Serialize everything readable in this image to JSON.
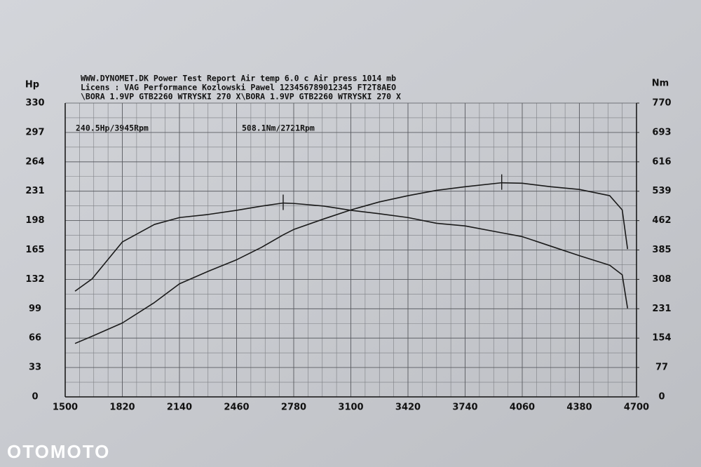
{
  "chart_data": {
    "type": "line",
    "header": [
      "WWW.DYNOMET.DK  Power Test Report   Air temp     6.0 c      Air press   1014 mb",
      "Licens :  VAG Performance Kozlowski Pawel 123456789012345 FT2T8AEO",
      "\\BORA 1.9VP GTB2260 WTRYSKI 270 X\\BORA 1.9VP GTB2260 WTRYSKI 270 X"
    ],
    "annotations": [
      "240.5Hp/3945Rpm",
      "508.1Nm/2721Rpm"
    ],
    "ylabel": "Hp",
    "y2label": "Nm",
    "watermark": "OTOMOTO",
    "x": [
      1555,
      1650,
      1820,
      2000,
      2140,
      2300,
      2460,
      2600,
      2721,
      2780,
      2950,
      3100,
      3260,
      3420,
      3580,
      3740,
      3945,
      4060,
      4220,
      4380,
      4550,
      4620,
      4650
    ],
    "series": [
      {
        "color": "#1a1a1a",
        "values": [
          60,
          68,
          83,
          106,
          127,
          141,
          154,
          168,
          182,
          188,
          200,
          210,
          219,
          226,
          232,
          236,
          240.5,
          240,
          236,
          233,
          226,
          210,
          166
        ]
      },
      {
        "color": "#1a1a1a",
        "axis": "y2",
        "values": [
          277,
          309,
          406,
          452,
          470,
          478,
          489,
          500,
          508.1,
          507,
          500,
          489,
          480,
          470,
          455,
          448,
          430,
          420,
          395,
          370,
          345,
          320,
          232
        ]
      }
    ],
    "xlim": [
      1500,
      4700
    ],
    "xticks": [
      1500,
      1820,
      2140,
      2460,
      2780,
      3100,
      3420,
      3740,
      4060,
      4380,
      4700
    ],
    "ylim": [
      0,
      330
    ],
    "yticks": [
      0,
      33,
      66,
      99,
      132,
      165,
      198,
      231,
      264,
      297,
      330
    ],
    "y2lim": [
      0,
      770
    ],
    "y2ticks": [
      0,
      77,
      154,
      231,
      308,
      385,
      462,
      539,
      616,
      693,
      770
    ],
    "grid": true
  }
}
